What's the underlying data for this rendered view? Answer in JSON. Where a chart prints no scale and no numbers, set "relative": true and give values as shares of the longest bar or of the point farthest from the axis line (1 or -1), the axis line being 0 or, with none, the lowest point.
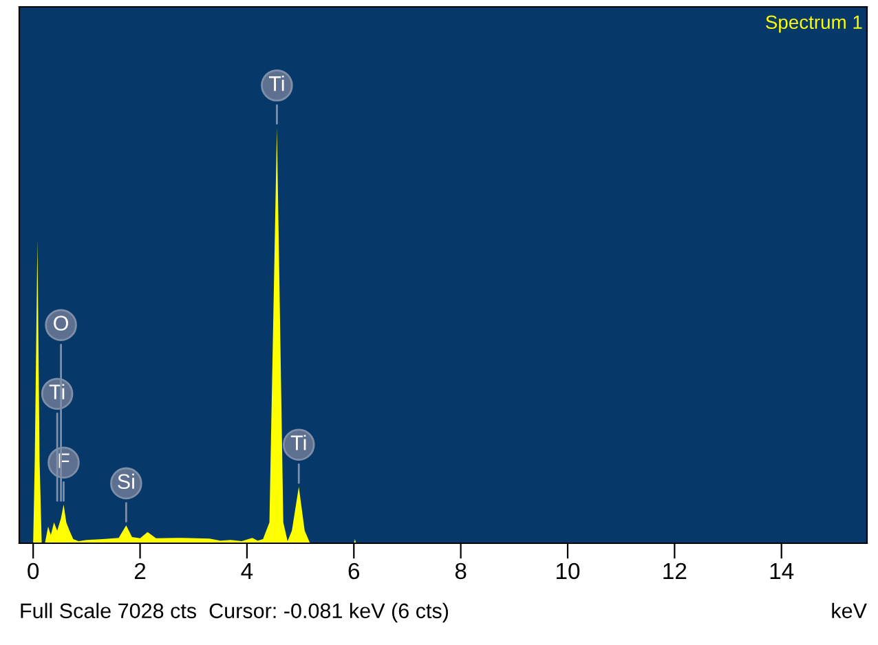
{
  "chart_data": {
    "type": "area",
    "relative": true,
    "xlabel": "keV",
    "xlim": [
      -0.26,
      15.6
    ],
    "xticks": [
      0,
      2,
      4,
      6,
      8,
      10,
      12,
      14
    ],
    "series": [
      {
        "name": "Spectrum 1",
        "color": "#ffff00",
        "x": [
          0,
          0.03,
          0.08,
          0.12,
          0.16,
          0.22,
          0.28,
          0.33,
          0.39,
          0.45,
          0.52,
          0.57,
          0.62,
          0.68,
          0.75,
          0.85,
          1.0,
          1.3,
          1.6,
          1.74,
          1.85,
          2.0,
          2.14,
          2.3,
          2.8,
          3.3,
          3.5,
          3.7,
          3.9,
          4.1,
          4.2,
          4.3,
          4.42,
          4.56,
          4.68,
          4.76,
          4.84,
          4.97,
          5.08,
          5.18,
          6.0,
          6.02,
          6.04,
          15.6
        ],
        "values": [
          0,
          0.2,
          0.73,
          0.2,
          0,
          0,
          0.04,
          0.02,
          0.05,
          0.03,
          0.06,
          0.093,
          0.05,
          0.03,
          0.01,
          0.005,
          0.008,
          0.01,
          0.013,
          0.043,
          0.015,
          0.012,
          0.027,
          0.012,
          0.013,
          0.011,
          0.006,
          0.008,
          0.005,
          0.013,
          0.006,
          0.01,
          0.05,
          1,
          0.05,
          0.005,
          0.03,
          0.136,
          0.03,
          0,
          0,
          0.01,
          0,
          0
        ]
      }
    ],
    "annotations": [
      {
        "text": "F",
        "x": 0.57,
        "y": 0.093
      },
      {
        "text": "Ti",
        "x": 0.45,
        "y": 0.093
      },
      {
        "text": "O",
        "x": 0.52,
        "y": 0.093
      },
      {
        "text": "Si",
        "x": 1.74,
        "y": 0.043
      },
      {
        "text": "Ti",
        "x": 4.56,
        "y": 1
      },
      {
        "text": "Ti",
        "x": 4.97,
        "y": 0.136
      },
      "Full Scale 7028 cts  Cursor: -0.081 keV (6 cts)"
    ]
  }
}
